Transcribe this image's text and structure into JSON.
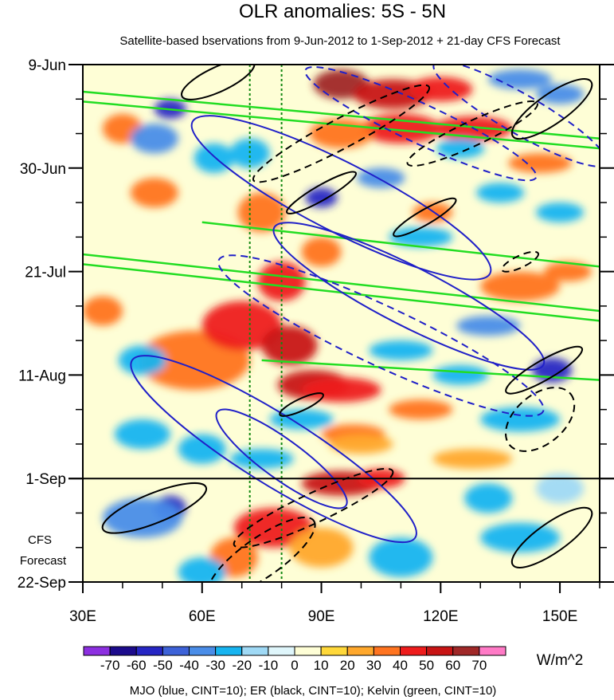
{
  "chart_data": {
    "type": "heatmap",
    "title": "OLR anomalies: 5S - 5N",
    "subtitle": "Satellite-based bservations from 9-Jun-2012 to 1-Sep-2012 + 21-day CFS Forecast",
    "x_axis": {
      "range": [
        30,
        160
      ],
      "ticks": [
        30,
        60,
        90,
        120,
        150
      ],
      "tick_labels": [
        "30E",
        "60E",
        "90E",
        "120E",
        "150E"
      ]
    },
    "y_axis": {
      "range_days": [
        0,
        105
      ],
      "ticks_days": [
        0,
        21,
        42,
        63,
        84,
        105
      ],
      "tick_labels": [
        "9-Jun",
        "30-Jun",
        "21-Jul",
        "11-Aug",
        "1-Sep",
        "22-Sep"
      ],
      "direction": "time increases downward"
    },
    "forecast_start_day": 84,
    "forecast_label_lines": [
      "CFS",
      "Forecast"
    ],
    "reference_longitudes": [
      72,
      80
    ],
    "colorbar": {
      "unit": "W/m^2",
      "levels": [
        -70,
        -60,
        -50,
        -40,
        -30,
        -20,
        -10,
        0,
        10,
        20,
        30,
        40,
        50,
        60,
        70
      ],
      "level_labels": [
        "-70",
        "-60",
        "-50",
        "-40",
        "-30",
        "-20",
        "-10",
        "0",
        "10",
        "20",
        "30",
        "40",
        "50",
        "60",
        "70"
      ],
      "colors": [
        "#8c2fe0",
        "#1c0b8c",
        "#2626c4",
        "#3d62d8",
        "#4a8de8",
        "#17b4f0",
        "#9fd9f5",
        "#dff6fb",
        "#fefed6",
        "#ffd83a",
        "#ffa82c",
        "#ff7420",
        "#ee1c1c",
        "#c81414",
        "#a02828",
        "#ff7ac6"
      ]
    },
    "anomaly_features": [
      {
        "lon": 58,
        "day": 60,
        "value": 35,
        "elon": 14,
        "eday": 6
      },
      {
        "lon": 70,
        "day": 53,
        "value": 45,
        "elon": 10,
        "eday": 5
      },
      {
        "lon": 82,
        "day": 57,
        "value": 55,
        "elon": 7,
        "eday": 4
      },
      {
        "lon": 88,
        "day": 65,
        "value": 50,
        "elon": 9,
        "eday": 3
      },
      {
        "lon": 95,
        "day": 66,
        "value": 45,
        "elon": 10,
        "eday": 2.5
      },
      {
        "lon": 115,
        "day": 70,
        "value": 35,
        "elon": 8,
        "eday": 2
      },
      {
        "lon": 80,
        "day": 44,
        "value": 40,
        "elon": 6,
        "eday": 4
      },
      {
        "lon": 90,
        "day": 38,
        "value": 30,
        "elon": 5,
        "eday": 3
      },
      {
        "lon": 95,
        "day": 4,
        "value": 65,
        "elon": 7,
        "eday": 3
      },
      {
        "lon": 108,
        "day": 6,
        "value": 55,
        "elon": 10,
        "eday": 3
      },
      {
        "lon": 120,
        "day": 5,
        "value": 40,
        "elon": 8,
        "eday": 2.5
      },
      {
        "lon": 110,
        "day": 13,
        "value": 45,
        "elon": 10,
        "eday": 3
      },
      {
        "lon": 95,
        "day": 14,
        "value": 35,
        "elon": 8,
        "eday": 3
      },
      {
        "lon": 128,
        "day": 13,
        "value": 45,
        "elon": 10,
        "eday": 2.5
      },
      {
        "lon": 75,
        "day": 30,
        "value": 35,
        "elon": 6,
        "eday": 4
      },
      {
        "lon": 118,
        "day": 30,
        "value": 30,
        "elon": 5,
        "eday": 2
      },
      {
        "lon": 145,
        "day": 20,
        "value": 30,
        "elon": 8,
        "eday": 2
      },
      {
        "lon": 140,
        "day": 45,
        "value": 35,
        "elon": 10,
        "eday": 3
      },
      {
        "lon": 152,
        "day": 42,
        "value": 30,
        "elon": 6,
        "eday": 2
      },
      {
        "lon": 40,
        "day": 13,
        "value": 30,
        "elon": 5,
        "eday": 3
      },
      {
        "lon": 48,
        "day": 26,
        "value": 30,
        "elon": 6,
        "eday": 3
      },
      {
        "lon": 35,
        "day": 50,
        "value": 30,
        "elon": 5,
        "eday": 3
      },
      {
        "lon": 98,
        "day": 75,
        "value": 30,
        "elon": 8,
        "eday": 2
      },
      {
        "lon": 128,
        "day": 80,
        "value": 25,
        "elon": 10,
        "eday": 2
      },
      {
        "lon": 95,
        "day": 85,
        "value": 50,
        "elon": 10,
        "eday": 2.5
      },
      {
        "lon": 105,
        "day": 84,
        "value": 40,
        "elon": 6,
        "eday": 2
      },
      {
        "lon": 78,
        "day": 94,
        "value": 40,
        "elon": 10,
        "eday": 4
      },
      {
        "lon": 68,
        "day": 100,
        "value": 35,
        "elon": 6,
        "eday": 4
      },
      {
        "lon": 90,
        "day": 98,
        "value": 20,
        "elon": 8,
        "eday": 4
      },
      {
        "lon": 100,
        "day": 77,
        "value": 20,
        "elon": 8,
        "eday": 2
      },
      {
        "lon": 52,
        "day": 9,
        "value": -55,
        "elon": 4,
        "eday": 2
      },
      {
        "lon": 48,
        "day": 15,
        "value": -35,
        "elon": 6,
        "eday": 3
      },
      {
        "lon": 63,
        "day": 19,
        "value": -30,
        "elon": 5,
        "eday": 3
      },
      {
        "lon": 72,
        "day": 18,
        "value": -25,
        "elon": 5,
        "eday": 3
      },
      {
        "lon": 90,
        "day": 27,
        "value": -55,
        "elon": 4,
        "eday": 2
      },
      {
        "lon": 105,
        "day": 23,
        "value": -35,
        "elon": 6,
        "eday": 2
      },
      {
        "lon": 115,
        "day": 35,
        "value": -30,
        "elon": 8,
        "eday": 2
      },
      {
        "lon": 125,
        "day": 17,
        "value": -30,
        "elon": 6,
        "eday": 2
      },
      {
        "lon": 140,
        "day": 3,
        "value": -35,
        "elon": 8,
        "eday": 2
      },
      {
        "lon": 150,
        "day": 6,
        "value": -35,
        "elon": 6,
        "eday": 2
      },
      {
        "lon": 135,
        "day": 26,
        "value": -25,
        "elon": 6,
        "eday": 2
      },
      {
        "lon": 150,
        "day": 30,
        "value": -25,
        "elon": 6,
        "eday": 2
      },
      {
        "lon": 132,
        "day": 53,
        "value": -35,
        "elon": 8,
        "eday": 2
      },
      {
        "lon": 148,
        "day": 62,
        "value": -55,
        "elon": 5,
        "eday": 2.5
      },
      {
        "lon": 140,
        "day": 72,
        "value": -30,
        "elon": 10,
        "eday": 2.5
      },
      {
        "lon": 125,
        "day": 63,
        "value": -30,
        "elon": 7,
        "eday": 2
      },
      {
        "lon": 110,
        "day": 58,
        "value": -25,
        "elon": 8,
        "eday": 2
      },
      {
        "lon": 45,
        "day": 60,
        "value": -25,
        "elon": 6,
        "eday": 3
      },
      {
        "lon": 45,
        "day": 75,
        "value": -30,
        "elon": 7,
        "eday": 3
      },
      {
        "lon": 60,
        "day": 78,
        "value": -30,
        "elon": 6,
        "eday": 3
      },
      {
        "lon": 85,
        "day": 72,
        "value": -30,
        "elon": 8,
        "eday": 2
      },
      {
        "lon": 75,
        "day": 80,
        "value": -25,
        "elon": 8,
        "eday": 2
      },
      {
        "lon": 52,
        "day": 90,
        "value": -55,
        "elon": 4,
        "eday": 2.5
      },
      {
        "lon": 45,
        "day": 92,
        "value": -35,
        "elon": 10,
        "eday": 4
      },
      {
        "lon": 60,
        "day": 103,
        "value": -25,
        "elon": 6,
        "eday": 3
      },
      {
        "lon": 110,
        "day": 100,
        "value": -25,
        "elon": 8,
        "eday": 4
      },
      {
        "lon": 140,
        "day": 96,
        "value": -30,
        "elon": 10,
        "eday": 3
      },
      {
        "lon": 132,
        "day": 88,
        "value": -25,
        "elon": 6,
        "eday": 3
      },
      {
        "lon": 150,
        "day": 86,
        "value": -20,
        "elon": 6,
        "eday": 3
      }
    ],
    "filtered_contours": [
      {
        "wave": "MJO",
        "color": "#2020c8",
        "sign": "negative",
        "lon": 95,
        "day": 27,
        "rlon": 42,
        "rday": 7,
        "angle": 27
      },
      {
        "wave": "MJO",
        "color": "#2020c8",
        "sign": "negative",
        "lon": 112,
        "day": 47,
        "rlon": 38,
        "rday": 6,
        "angle": 27
      },
      {
        "wave": "MJO",
        "color": "#2020c8",
        "sign": "negative",
        "lon": 78,
        "day": 78,
        "rlon": 42,
        "rday": 7,
        "angle": 32
      },
      {
        "wave": "MJO",
        "color": "#2020c8",
        "sign": "negative",
        "lon": 80,
        "day": 80,
        "rlon": 20,
        "rday": 4,
        "angle": 36
      },
      {
        "wave": "MJO",
        "color": "#2020c8",
        "sign": "positive",
        "lon": 105,
        "day": 55,
        "rlon": 45,
        "rday": 6,
        "angle": 25
      },
      {
        "wave": "MJO",
        "color": "#2020c8",
        "sign": "positive",
        "lon": 115,
        "day": 12,
        "rlon": 32,
        "rday": 4,
        "angle": 25
      },
      {
        "wave": "MJO",
        "color": "#2020c8",
        "sign": "positive",
        "lon": 140,
        "day": 10,
        "rlon": 25,
        "rday": 4,
        "angle": 30
      },
      {
        "wave": "ER",
        "color": "#000000",
        "sign": "negative",
        "lon": 48,
        "day": 90,
        "rlon": 14,
        "rday": 3,
        "angle": -22
      },
      {
        "wave": "ER",
        "color": "#000000",
        "sign": "negative",
        "lon": 90,
        "day": 26,
        "rlon": 10,
        "rday": 1.5,
        "angle": -30
      },
      {
        "wave": "ER",
        "color": "#000000",
        "sign": "negative",
        "lon": 116,
        "day": 31,
        "rlon": 9,
        "rday": 1.5,
        "angle": -30
      },
      {
        "wave": "ER",
        "color": "#000000",
        "sign": "negative",
        "lon": 146,
        "day": 62,
        "rlon": 11,
        "rday": 2,
        "angle": -30
      },
      {
        "wave": "ER",
        "color": "#000000",
        "sign": "negative",
        "lon": 148,
        "day": 9,
        "rlon": 12,
        "rday": 3,
        "angle": -35
      },
      {
        "wave": "ER",
        "color": "#000000",
        "sign": "negative",
        "lon": 148,
        "day": 96,
        "rlon": 12,
        "rday": 3,
        "angle": -35
      },
      {
        "wave": "ER",
        "color": "#000000",
        "sign": "negative",
        "lon": 64,
        "day": 3,
        "rlon": 10,
        "rday": 2.5,
        "angle": -25
      },
      {
        "wave": "ER",
        "color": "#000000",
        "sign": "negative",
        "lon": 85,
        "day": 69,
        "rlon": 6,
        "rday": 1.2,
        "angle": -25
      },
      {
        "wave": "ER",
        "color": "#000000",
        "sign": "positive",
        "lon": 88,
        "day": 90,
        "rlon": 22,
        "rday": 3,
        "angle": -25
      },
      {
        "wave": "ER",
        "color": "#000000",
        "sign": "positive",
        "lon": 95,
        "day": 14,
        "rlon": 25,
        "rday": 3,
        "angle": -28
      },
      {
        "wave": "ER",
        "color": "#000000",
        "sign": "positive",
        "lon": 128,
        "day": 14,
        "rlon": 18,
        "rday": 2.5,
        "angle": -25
      },
      {
        "wave": "ER",
        "color": "#000000",
        "sign": "positive",
        "lon": 75,
        "day": 100,
        "rlon": 16,
        "rday": 4,
        "angle": -35
      },
      {
        "wave": "ER",
        "color": "#000000",
        "sign": "positive",
        "lon": 145,
        "day": 72,
        "rlon": 10,
        "rday": 5,
        "angle": -40
      },
      {
        "wave": "ER",
        "color": "#000000",
        "sign": "positive",
        "lon": 140,
        "day": 40,
        "rlon": 5,
        "rday": 1.2,
        "angle": -25
      }
    ],
    "kelvin_lines": [
      {
        "wave": "Kelvin",
        "color": "#22dd22",
        "lon": [
          30,
          160
        ],
        "day": [
          5.5,
          15
        ]
      },
      {
        "wave": "Kelvin",
        "color": "#22dd22",
        "lon": [
          30,
          160
        ],
        "day": [
          7.5,
          17
        ]
      },
      {
        "wave": "Kelvin",
        "color": "#22dd22",
        "lon": [
          30,
          160
        ],
        "day": [
          38.5,
          50
        ]
      },
      {
        "wave": "Kelvin",
        "color": "#22dd22",
        "lon": [
          30,
          160
        ],
        "day": [
          40.5,
          52
        ]
      },
      {
        "wave": "Kelvin",
        "color": "#22dd22",
        "lon": [
          75,
          160
        ],
        "day": [
          60,
          64
        ]
      },
      {
        "wave": "Kelvin",
        "color": "#22dd22",
        "lon": [
          60,
          160
        ],
        "day": [
          32,
          41
        ]
      }
    ],
    "legend_text": "MJO (blue, CINT=10); ER (black, CINT=10); Kelvin (green, CINT=10)"
  }
}
